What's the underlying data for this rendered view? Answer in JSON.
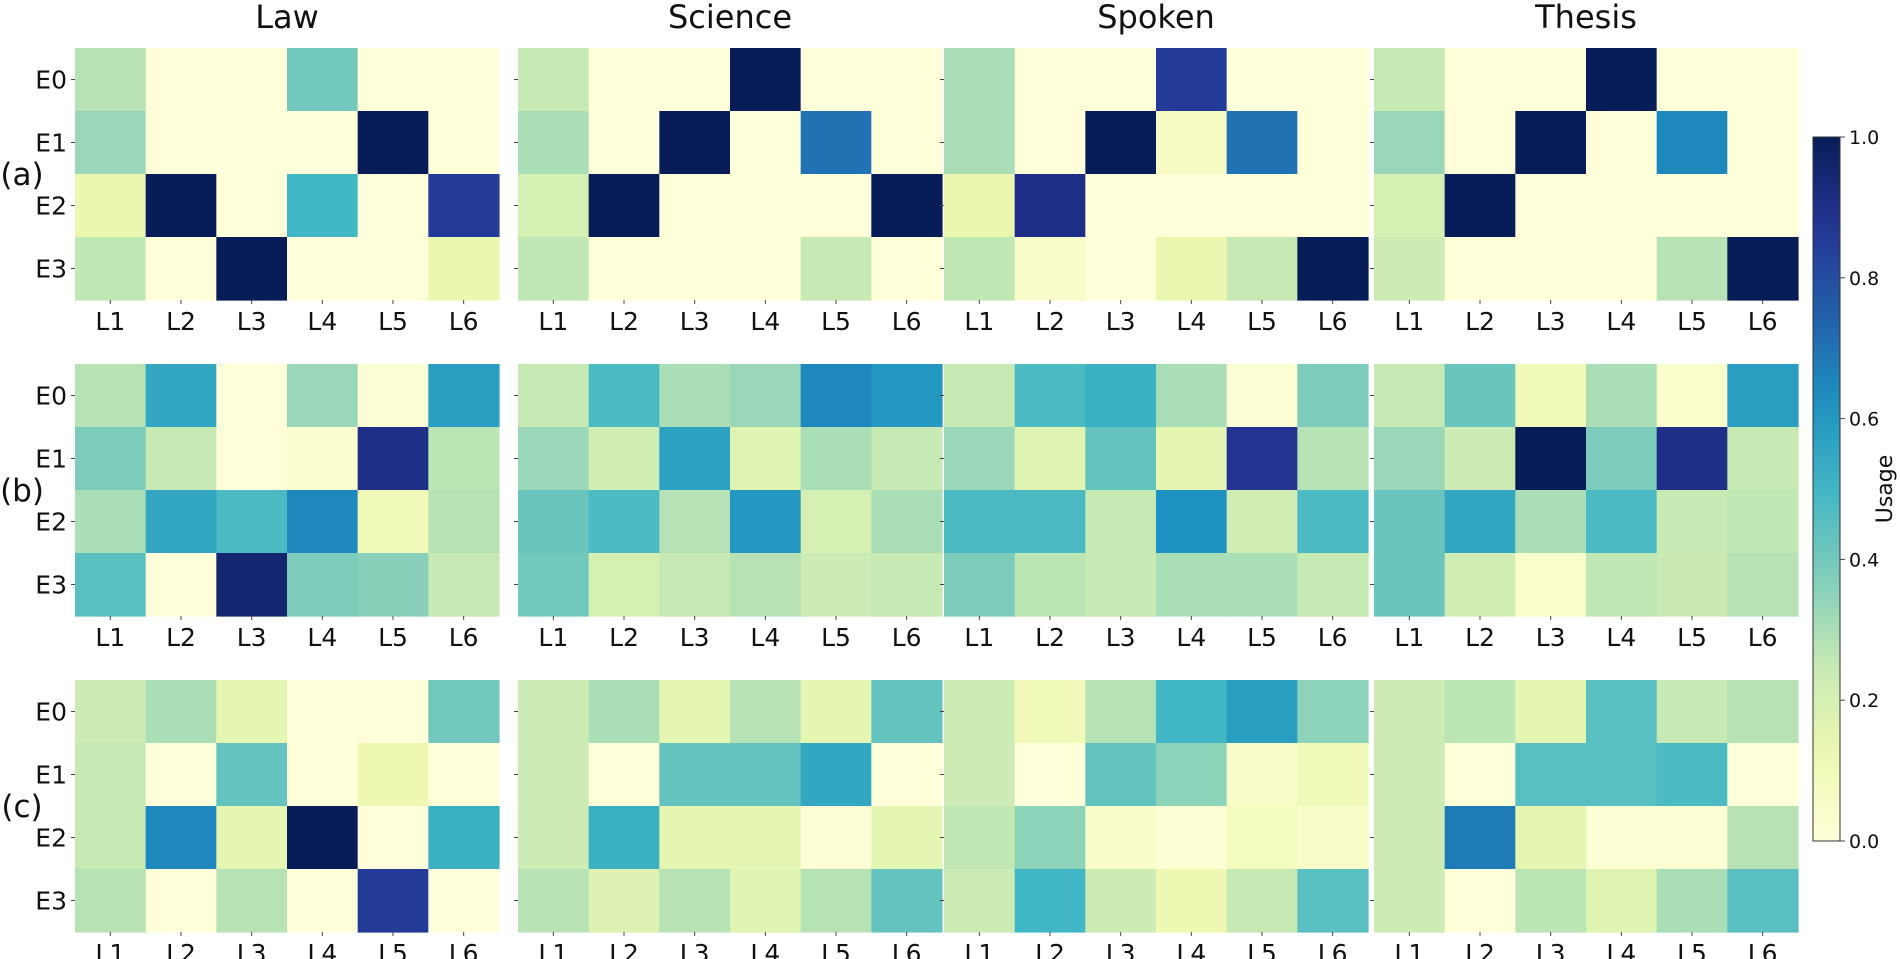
{
  "chart_data": {
    "type": "heatmap",
    "columns": [
      "Law",
      "Science",
      "Spoken",
      "Thesis"
    ],
    "rows": [
      "(a)",
      "(b)",
      "(c)"
    ],
    "x_categories": [
      "L1",
      "L2",
      "L3",
      "L4",
      "L5",
      "L6"
    ],
    "y_categories": [
      "E0",
      "E1",
      "E2",
      "E3"
    ],
    "colormap": "YlGnBu",
    "vmin": 0.0,
    "vmax": 1.0,
    "colorbar": {
      "label": "Usage",
      "ticks": [
        "0.0",
        "0.2",
        "0.4",
        "0.6",
        "0.8",
        "1.0"
      ],
      "tick_values": [
        0.0,
        0.2,
        0.4,
        0.6,
        0.8,
        1.0
      ]
    },
    "panels": [
      {
        "row": "(a)",
        "column": "Law",
        "values": [
          [
            0.28,
            0.0,
            0.0,
            0.4,
            0.0,
            0.0
          ],
          [
            0.33,
            0.0,
            0.0,
            0.0,
            1.0,
            0.0
          ],
          [
            0.13,
            1.0,
            0.0,
            0.5,
            0.0,
            0.85
          ],
          [
            0.26,
            0.0,
            1.0,
            0.0,
            0.0,
            0.13
          ]
        ]
      },
      {
        "row": "(a)",
        "column": "Science",
        "values": [
          [
            0.25,
            0.0,
            0.0,
            1.0,
            0.0,
            0.0
          ],
          [
            0.3,
            0.0,
            1.0,
            0.0,
            0.7,
            0.0
          ],
          [
            0.2,
            1.0,
            0.0,
            0.0,
            0.0,
            1.0
          ],
          [
            0.26,
            0.0,
            0.0,
            0.0,
            0.25,
            0.0
          ]
        ]
      },
      {
        "row": "(a)",
        "column": "Spoken",
        "values": [
          [
            0.3,
            0.0,
            0.0,
            0.85,
            0.0,
            0.0
          ],
          [
            0.3,
            0.0,
            1.0,
            0.07,
            0.7,
            0.0
          ],
          [
            0.13,
            0.9,
            0.0,
            0.0,
            0.0,
            0.0
          ],
          [
            0.26,
            0.05,
            0.0,
            0.13,
            0.25,
            1.0
          ]
        ]
      },
      {
        "row": "(a)",
        "column": "Thesis",
        "values": [
          [
            0.25,
            0.0,
            0.0,
            1.0,
            0.0,
            0.0
          ],
          [
            0.33,
            0.0,
            1.0,
            0.0,
            0.65,
            0.0
          ],
          [
            0.2,
            1.0,
            0.0,
            0.0,
            0.0,
            0.0
          ],
          [
            0.23,
            0.0,
            0.0,
            0.0,
            0.28,
            1.0
          ]
        ]
      },
      {
        "row": "(b)",
        "column": "Law",
        "values": [
          [
            0.28,
            0.55,
            0.0,
            0.33,
            0.02,
            0.58
          ],
          [
            0.38,
            0.25,
            0.0,
            0.03,
            0.9,
            0.27
          ],
          [
            0.3,
            0.55,
            0.48,
            0.65,
            0.1,
            0.28
          ],
          [
            0.45,
            0.0,
            0.95,
            0.38,
            0.36,
            0.25
          ]
        ]
      },
      {
        "row": "(b)",
        "column": "Science",
        "values": [
          [
            0.25,
            0.48,
            0.3,
            0.33,
            0.65,
            0.6
          ],
          [
            0.33,
            0.22,
            0.57,
            0.17,
            0.3,
            0.25
          ],
          [
            0.42,
            0.48,
            0.28,
            0.6,
            0.2,
            0.3
          ],
          [
            0.4,
            0.2,
            0.25,
            0.28,
            0.23,
            0.25
          ]
        ]
      },
      {
        "row": "(b)",
        "column": "Spoken",
        "values": [
          [
            0.25,
            0.48,
            0.52,
            0.3,
            0.02,
            0.38
          ],
          [
            0.33,
            0.17,
            0.43,
            0.15,
            0.88,
            0.28
          ],
          [
            0.48,
            0.48,
            0.25,
            0.62,
            0.22,
            0.48
          ],
          [
            0.38,
            0.27,
            0.25,
            0.3,
            0.3,
            0.25
          ]
        ]
      },
      {
        "row": "(b)",
        "column": "Thesis",
        "values": [
          [
            0.25,
            0.42,
            0.1,
            0.3,
            0.04,
            0.58
          ],
          [
            0.33,
            0.23,
            1.0,
            0.38,
            0.9,
            0.25
          ],
          [
            0.42,
            0.55,
            0.3,
            0.48,
            0.25,
            0.26
          ],
          [
            0.42,
            0.22,
            0.04,
            0.26,
            0.24,
            0.28
          ]
        ]
      },
      {
        "row": "(c)",
        "column": "Law",
        "values": [
          [
            0.23,
            0.3,
            0.15,
            0.0,
            0.0,
            0.4
          ],
          [
            0.25,
            0.0,
            0.43,
            0.0,
            0.12,
            0.0
          ],
          [
            0.25,
            0.65,
            0.15,
            1.0,
            0.0,
            0.52
          ],
          [
            0.28,
            0.0,
            0.28,
            0.0,
            0.85,
            0.0
          ]
        ]
      },
      {
        "row": "(c)",
        "column": "Science",
        "values": [
          [
            0.23,
            0.3,
            0.15,
            0.28,
            0.15,
            0.43
          ],
          [
            0.23,
            0.0,
            0.43,
            0.43,
            0.55,
            0.0
          ],
          [
            0.23,
            0.52,
            0.15,
            0.15,
            0.02,
            0.15
          ],
          [
            0.28,
            0.18,
            0.28,
            0.17,
            0.28,
            0.43
          ]
        ]
      },
      {
        "row": "(c)",
        "column": "Spoken",
        "values": [
          [
            0.23,
            0.1,
            0.28,
            0.5,
            0.58,
            0.35
          ],
          [
            0.23,
            0.0,
            0.43,
            0.35,
            0.05,
            0.1
          ],
          [
            0.26,
            0.35,
            0.05,
            0.02,
            0.08,
            0.05
          ],
          [
            0.23,
            0.5,
            0.23,
            0.12,
            0.25,
            0.45
          ]
        ]
      },
      {
        "row": "(c)",
        "column": "Thesis",
        "values": [
          [
            0.23,
            0.27,
            0.15,
            0.45,
            0.25,
            0.28
          ],
          [
            0.23,
            0.0,
            0.45,
            0.45,
            0.48,
            0.0
          ],
          [
            0.23,
            0.68,
            0.15,
            0.02,
            0.02,
            0.28
          ],
          [
            0.23,
            0.0,
            0.27,
            0.17,
            0.3,
            0.45
          ]
        ]
      }
    ]
  }
}
